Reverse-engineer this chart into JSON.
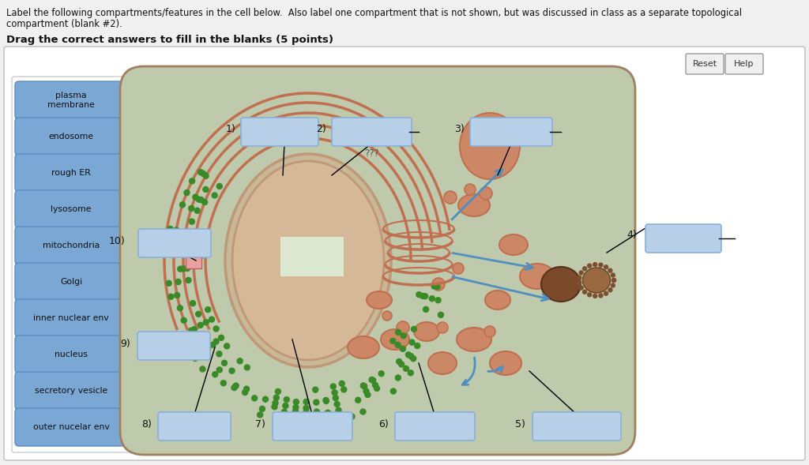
{
  "bg_color": "#f0f0f0",
  "page_bg": "#f0f0f0",
  "title_text1": "Label the following compartments/features in the cell below.  Also label one compartment that is not shown, but was discussed in class as a separate topological",
  "title_text2": "compartment (blank #2).",
  "subtitle_text": "Drag the correct answers to fill in the blanks (5 points)",
  "button_color": "#7ba7d4",
  "button_edge": "#5a8cc0",
  "answer_box_color": "#b8cfe8",
  "answer_box_edge": "#8ab0d8",
  "label_items": [
    "plasma\nmembrane",
    "endosome",
    "rough ER",
    "lysosome",
    "mitochondria",
    "Golgi",
    "inner nuclear env",
    "nucleus",
    "secretory vesicle",
    "outer nucelar env"
  ],
  "reset_btn": "Reset",
  "help_btn": "Help",
  "cell_bg_outer": "#d4836a",
  "cell_bg_inner": "#bfc9ab",
  "nucleus_outer_color": "#c09878",
  "nucleus_inner_color": "#d4b898",
  "er_color": "#c07050",
  "ribosome_color": "#3a8a28",
  "golgi_color": "#c07050",
  "mito_color": "#c07050",
  "mito_fill": "#cc8866",
  "vesicle_color": "#c07050",
  "vesicle_fill": "#cc8866",
  "brown_fill": "#7a4a2a",
  "arrow_color": "#5090c0",
  "white_box_fill": "#d8e0c8"
}
